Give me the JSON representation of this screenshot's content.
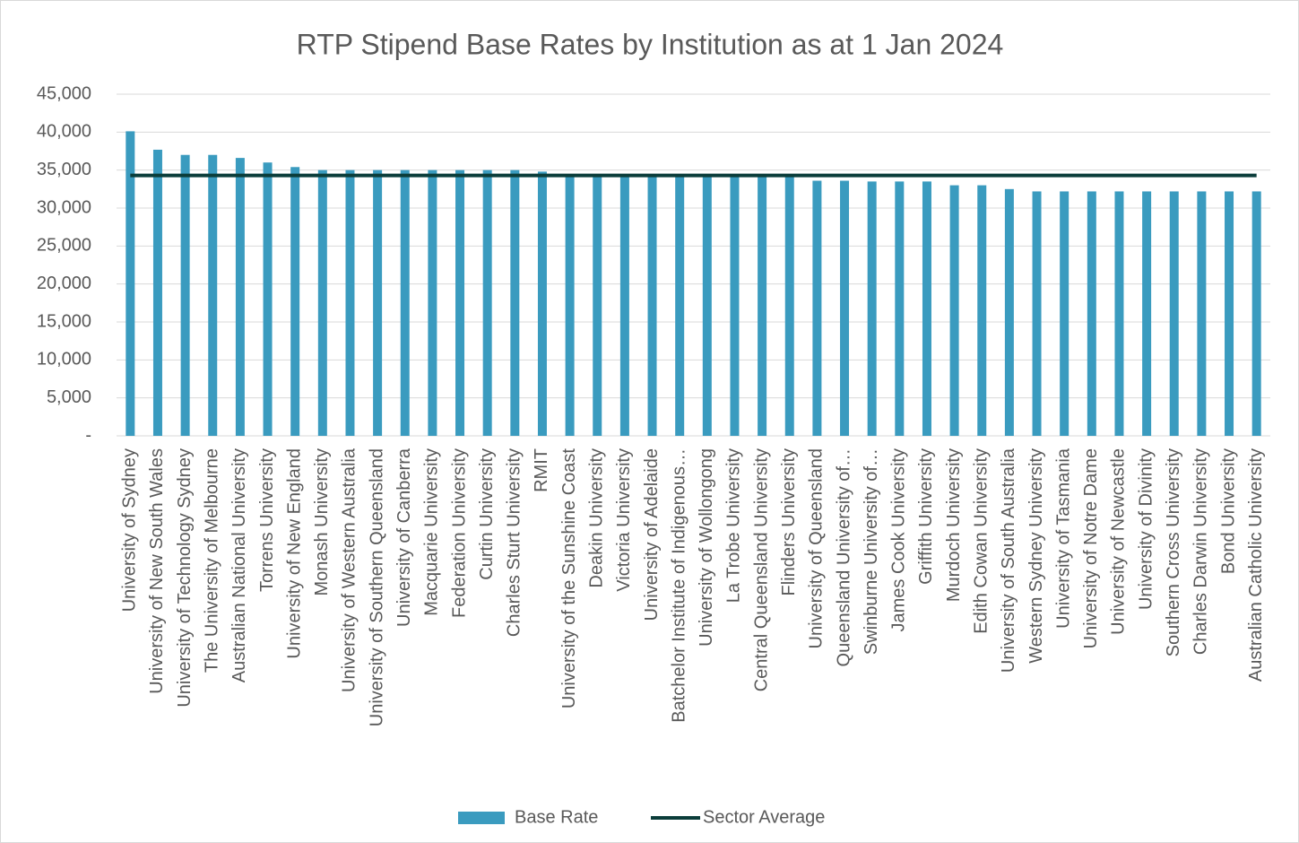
{
  "chart_data": {
    "type": "bar",
    "title": "RTP Stipend Base Rates by Institution as at 1 Jan 2024",
    "categories": [
      "University of Sydney",
      "University of New South Wales",
      "University of Technology Sydney",
      "The University of Melbourne",
      "Australian National University",
      "Torrens University",
      "University of New England",
      "Monash University",
      "University of Western Australia",
      "University of Southern Queensland",
      "University of Canberra",
      "Macquarie University",
      "Federation University",
      "Curtin University",
      "Charles Sturt University",
      "RMIT",
      "University of the Sunshine Coast",
      "Deakin University",
      "Victoria University",
      "University of Adelaide",
      "Batchelor Institute of Indigenous…",
      "University of Wollongong",
      "La Trobe University",
      "Central Queensland University",
      "Flinders University",
      "University of Queensland",
      "Queensland University of…",
      "Swinburne University of…",
      "James Cook University",
      "Griffith University",
      "Murdoch University",
      "Edith Cowan University",
      "University of South Australia",
      "Western Sydney University",
      "University of Tasmania",
      "University of Notre Dame",
      "University of Newcastle",
      "University of Divinity",
      "Southern Cross University",
      "Charles Darwin University",
      "Bond University",
      "Australian Catholic University"
    ],
    "series": [
      {
        "name": "Base Rate",
        "type": "bar",
        "color": "#3a9bbf",
        "values": [
          40109,
          37684,
          37000,
          37000,
          36600,
          36000,
          35400,
          35000,
          35000,
          35000,
          35000,
          35000,
          35000,
          35000,
          35000,
          34800,
          34400,
          34400,
          34400,
          34400,
          34400,
          34400,
          34400,
          34400,
          34400,
          33600,
          33600,
          33500,
          33500,
          33500,
          33000,
          33000,
          32500,
          32192,
          32192,
          32192,
          32192,
          32192,
          32192,
          32192,
          32192,
          32192
        ]
      },
      {
        "name": "Sector Average",
        "type": "line",
        "color": "#0b3d3a",
        "values": [
          34300,
          34300,
          34300,
          34300,
          34300,
          34300,
          34300,
          34300,
          34300,
          34300,
          34300,
          34300,
          34300,
          34300,
          34300,
          34300,
          34300,
          34300,
          34300,
          34300,
          34300,
          34300,
          34300,
          34300,
          34300,
          34300,
          34300,
          34300,
          34300,
          34300,
          34300,
          34300,
          34300,
          34300,
          34300,
          34300,
          34300,
          34300,
          34300,
          34300,
          34300,
          34300
        ]
      }
    ],
    "ylim": [
      0,
      45000
    ],
    "yticks": [
      {
        "value": 0,
        "label": "-"
      },
      {
        "value": 5000,
        "label": "5,000"
      },
      {
        "value": 10000,
        "label": "10,000"
      },
      {
        "value": 15000,
        "label": "15,000"
      },
      {
        "value": 20000,
        "label": "20,000"
      },
      {
        "value": 25000,
        "label": "25,000"
      },
      {
        "value": 30000,
        "label": "30,000"
      },
      {
        "value": 35000,
        "label": "35,000"
      },
      {
        "value": 40000,
        "label": "40,000"
      },
      {
        "value": 45000,
        "label": "45,000"
      }
    ],
    "grid": true,
    "legend": "bottom"
  }
}
